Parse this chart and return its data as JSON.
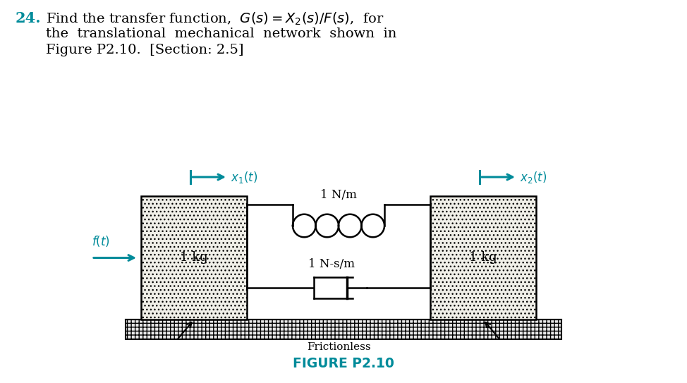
{
  "figure_label": "FIGURE P2.10",
  "label_x1": "$x_1(t)$",
  "label_x2": "$x_2(t)$",
  "label_ft": "$f(t)$",
  "label_spring": "1 N/m",
  "label_damper": "1 N-s/m",
  "label_mass1": "1 kg",
  "label_mass2": "1 kg",
  "label_frictionless": "Frictionless",
  "teal_color": "#008B9A",
  "bg_color": "#FFFFFF",
  "fig_w": 9.74,
  "fig_h": 5.43,
  "dpi": 100
}
